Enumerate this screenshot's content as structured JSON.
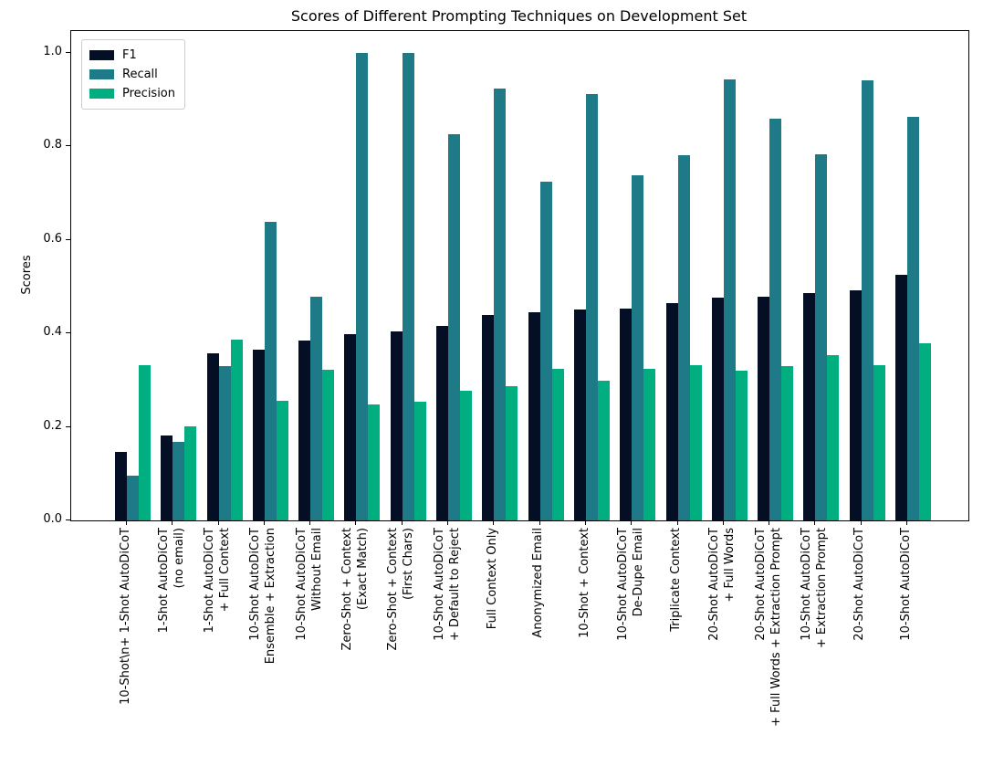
{
  "chart_data": {
    "type": "bar",
    "title": "Scores of Different Prompting Techniques on Development Set",
    "xlabel": "",
    "ylabel": "Scores",
    "ylim": [
      0,
      1.047
    ],
    "grid": false,
    "legend": {
      "position": "upper left"
    },
    "yticks": {
      "values": [
        0.0,
        0.2,
        0.4,
        0.6,
        0.8,
        1.0
      ],
      "labels": [
        "0.0",
        "0.2",
        "0.4",
        "0.6",
        "0.8",
        "1.0"
      ]
    },
    "categories": [
      [
        "10-Shot\\n+ 1-Shot AutoDiCoT"
      ],
      [
        "1-Shot AutoDiCoT",
        "(no email)"
      ],
      [
        "1-Shot AutoDiCoT",
        "+ Full Context"
      ],
      [
        "10-Shot AutoDiCoT",
        "Ensemble + Extraction"
      ],
      [
        "10-Shot AutoDiCoT",
        "Without Email"
      ],
      [
        "Zero-Shot + Context",
        "(Exact Match)"
      ],
      [
        "Zero-Shot + Context",
        "(First Chars)"
      ],
      [
        "10-Shot AutoDiCoT",
        "+ Default to Reject"
      ],
      [
        "Full Context Only"
      ],
      [
        "Anonymized Email"
      ],
      [
        "10-Shot + Context"
      ],
      [
        "10-Shot AutoDiCoT",
        "De-Dupe Email"
      ],
      [
        "Triplicate Context"
      ],
      [
        "20-Shot AutoDiCoT",
        "+ Full Words"
      ],
      [
        "20-Shot AutoDiCoT",
        "+ Full Words + Extraction Prompt"
      ],
      [
        "10-Shot AutoDiCoT",
        "+ Extraction Prompt"
      ],
      [
        "20-Shot AutoDiCoT"
      ],
      [
        "10-Shot AutoDiCoT"
      ]
    ],
    "series": [
      {
        "name": "F1",
        "color": "#040f26",
        "values": [
          0.147,
          0.181,
          0.357,
          0.365,
          0.384,
          0.398,
          0.404,
          0.416,
          0.439,
          0.446,
          0.451,
          0.453,
          0.465,
          0.477,
          0.478,
          0.486,
          0.492,
          0.525
        ]
      },
      {
        "name": "Recall",
        "color": "#1d7a86",
        "values": [
          0.095,
          0.168,
          0.331,
          0.639,
          0.478,
          1.0,
          1.0,
          0.827,
          0.924,
          0.724,
          0.913,
          0.739,
          0.782,
          0.943,
          0.859,
          0.784,
          0.941,
          0.864
        ]
      },
      {
        "name": "Precision",
        "color": "#00ae80",
        "values": [
          0.332,
          0.202,
          0.386,
          0.255,
          0.322,
          0.249,
          0.253,
          0.278,
          0.288,
          0.324,
          0.298,
          0.325,
          0.333,
          0.32,
          0.331,
          0.353,
          0.333,
          0.378
        ]
      }
    ]
  }
}
